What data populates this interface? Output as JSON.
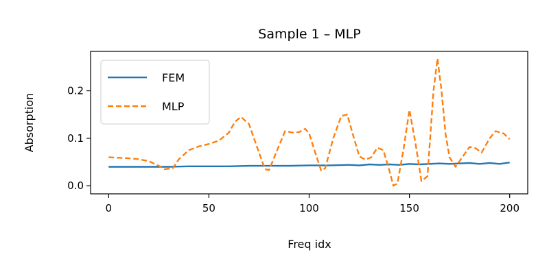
{
  "chart_data": {
    "type": "line",
    "title": "Sample 1 – MLP",
    "xlabel": "Freq idx",
    "ylabel": "Absorption",
    "xlim": [
      -9,
      209
    ],
    "ylim": [
      -0.017,
      0.283
    ],
    "xticks": [
      0,
      50,
      100,
      150,
      200
    ],
    "yticks": [
      0.0,
      0.1,
      0.2
    ],
    "ytick_labels": [
      "0.0",
      "0.1",
      "0.2"
    ],
    "grid": false,
    "legend_placement": "upper-left",
    "series": [
      {
        "name": "FEM",
        "color": "#1f77b4",
        "style": "solid",
        "x": [
          0,
          10,
          20,
          30,
          40,
          50,
          60,
          70,
          80,
          90,
          100,
          110,
          120,
          125,
          130,
          135,
          140,
          145,
          150,
          155,
          160,
          165,
          170,
          175,
          180,
          185,
          190,
          195,
          200
        ],
        "y": [
          0.04,
          0.04,
          0.04,
          0.04,
          0.041,
          0.041,
          0.041,
          0.042,
          0.042,
          0.042,
          0.043,
          0.043,
          0.044,
          0.043,
          0.045,
          0.044,
          0.045,
          0.044,
          0.046,
          0.045,
          0.046,
          0.047,
          0.046,
          0.047,
          0.048,
          0.046,
          0.048,
          0.046,
          0.049
        ]
      },
      {
        "name": "MLP",
        "color": "#ff7f0e",
        "style": "dashed",
        "x": [
          0,
          5,
          10,
          15,
          20,
          25,
          28,
          32,
          35,
          40,
          45,
          50,
          55,
          60,
          63,
          66,
          70,
          75,
          78,
          80,
          85,
          88,
          92,
          95,
          98,
          100,
          103,
          106,
          108,
          112,
          116,
          119,
          122,
          125,
          128,
          131,
          134,
          137,
          140,
          142,
          144,
          147,
          150,
          153,
          156,
          159,
          162,
          164,
          166,
          168,
          170,
          173,
          176,
          180,
          183,
          186,
          190,
          193,
          197,
          200
        ],
        "y": [
          0.06,
          0.059,
          0.058,
          0.056,
          0.052,
          0.042,
          0.035,
          0.037,
          0.056,
          0.075,
          0.083,
          0.088,
          0.095,
          0.112,
          0.135,
          0.145,
          0.13,
          0.07,
          0.035,
          0.033,
          0.085,
          0.115,
          0.112,
          0.113,
          0.12,
          0.11,
          0.07,
          0.032,
          0.037,
          0.1,
          0.147,
          0.15,
          0.105,
          0.062,
          0.055,
          0.06,
          0.08,
          0.075,
          0.032,
          0.0,
          0.005,
          0.075,
          0.16,
          0.09,
          0.01,
          0.02,
          0.2,
          0.268,
          0.2,
          0.11,
          0.06,
          0.04,
          0.058,
          0.082,
          0.079,
          0.07,
          0.1,
          0.115,
          0.11,
          0.098
        ]
      }
    ]
  }
}
